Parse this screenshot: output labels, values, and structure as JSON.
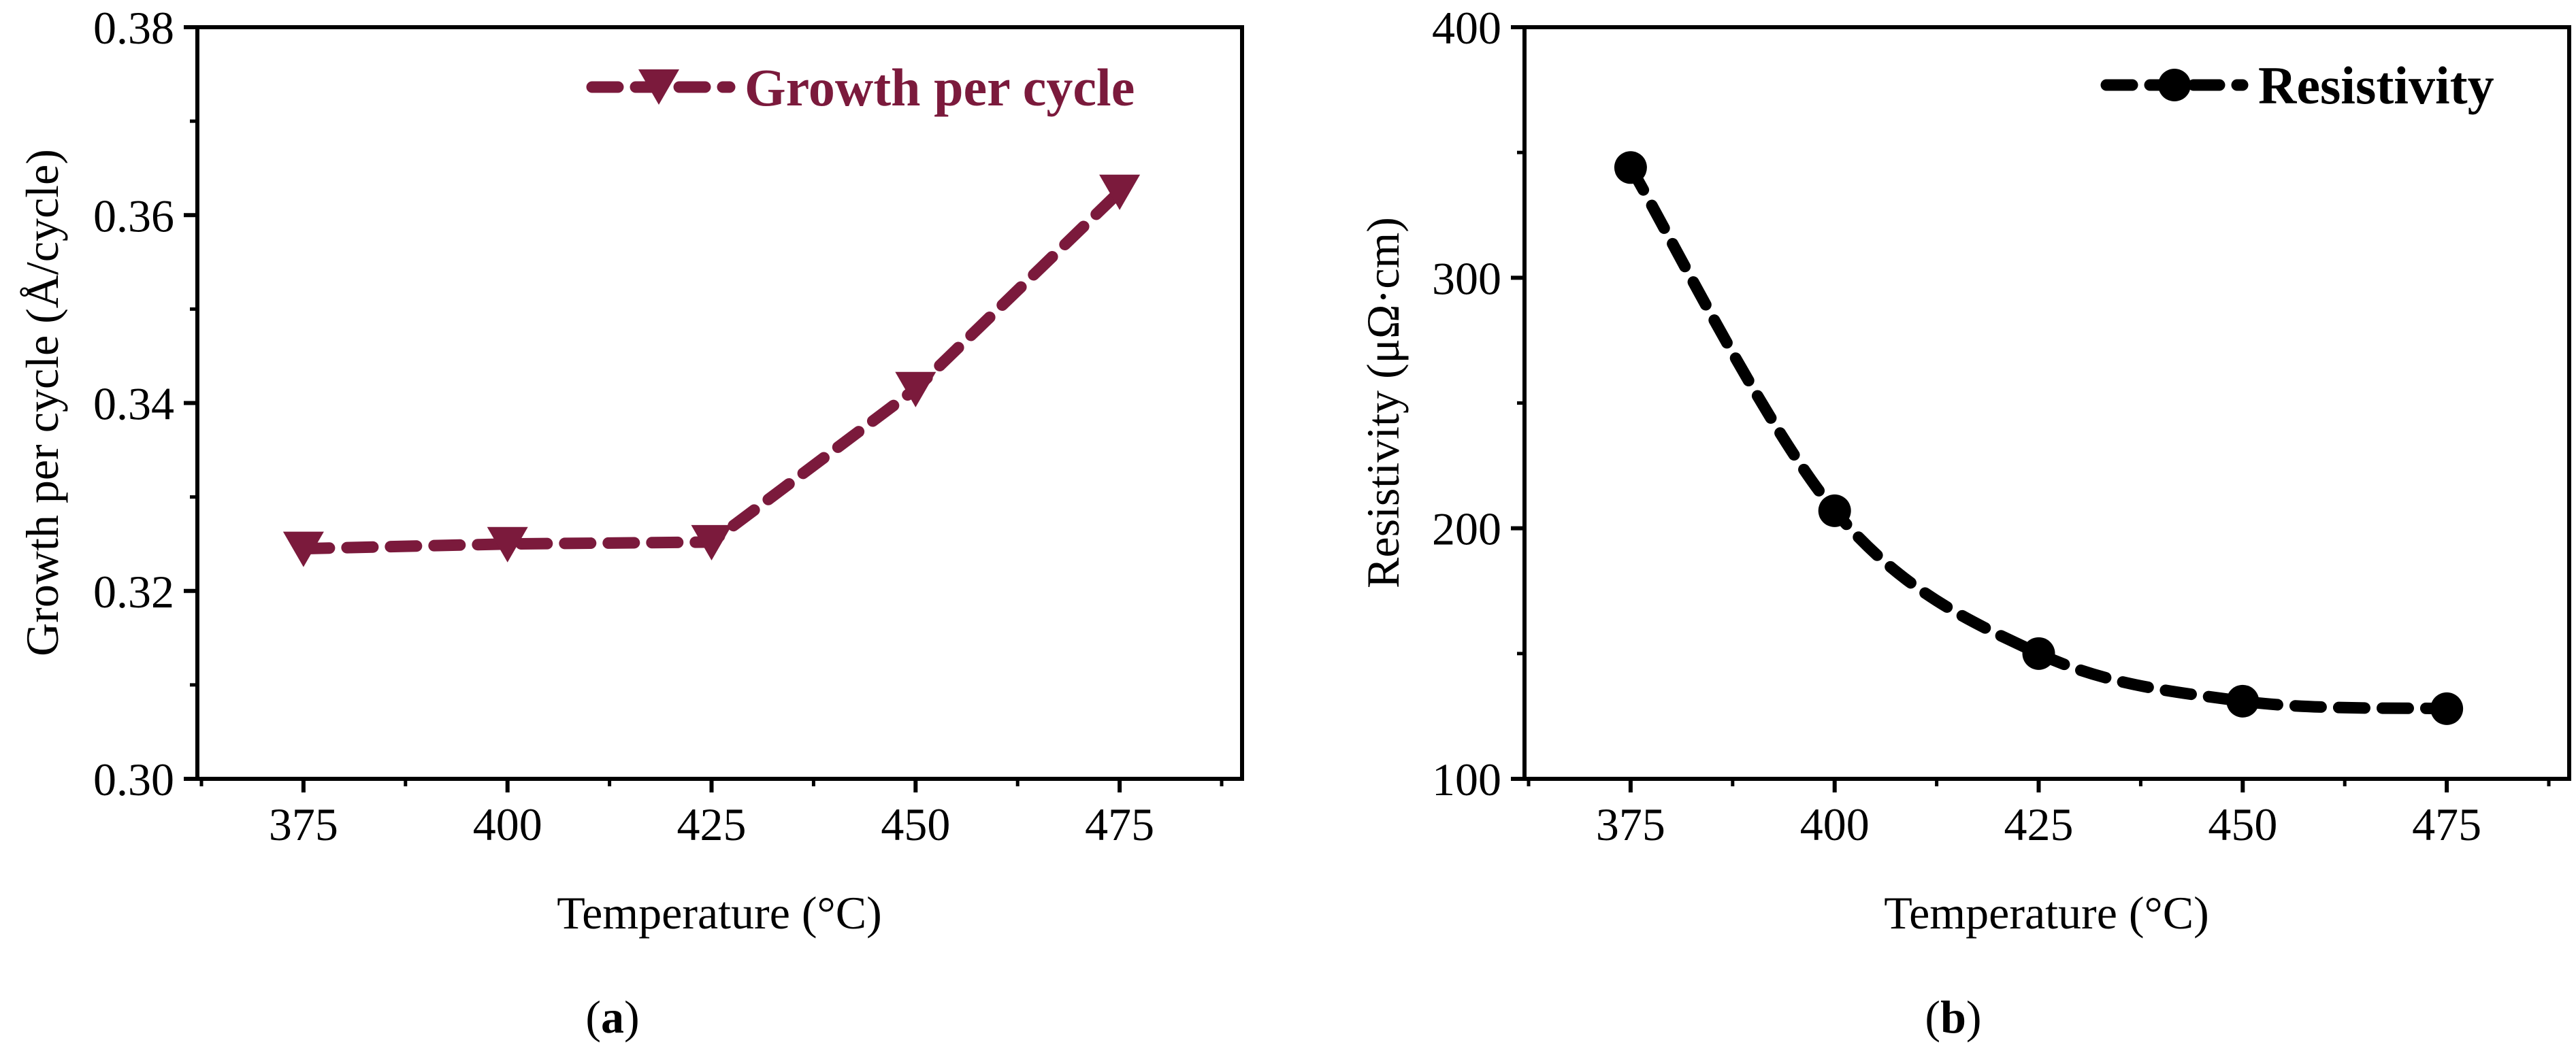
{
  "chart_data": [
    {
      "panel": "a",
      "type": "line",
      "caption_letter": "a",
      "x": [
        375,
        400,
        425,
        450,
        475
      ],
      "series": [
        {
          "name": "Growth per cycle",
          "values": [
            0.3245,
            0.325,
            0.3252,
            0.3415,
            0.3625
          ],
          "marker": "triangle-down",
          "line_style": "dashed",
          "color": "#7b1a3c"
        }
      ],
      "xlabel": "Temperature (°C)",
      "ylabel": "Growth per cycle (Å/cycle)",
      "xlim": [
        362,
        490
      ],
      "ylim": [
        0.3,
        0.38
      ],
      "xticks": [
        "375",
        "400",
        "425",
        "450",
        "475"
      ],
      "yticks": [
        "0.30",
        "0.32",
        "0.34",
        "0.36",
        "0.38"
      ],
      "xtick_values": [
        375,
        400,
        425,
        450,
        475
      ],
      "ytick_values": [
        0.3,
        0.32,
        0.34,
        0.36,
        0.38
      ],
      "legend": {
        "label": "Growth per cycle",
        "placement": "top-right"
      },
      "grid": false
    },
    {
      "panel": "b",
      "type": "line",
      "caption_letter": "b",
      "x": [
        375,
        400,
        425,
        450,
        475
      ],
      "series": [
        {
          "name": "Resistivity",
          "values": [
            344,
            207,
            150,
            131,
            128
          ],
          "marker": "circle",
          "line_style": "dashed",
          "color": "#000000"
        }
      ],
      "xlabel": "Temperature (°C)",
      "ylabel": "Resistivity (μΩ·cm)",
      "xlim": [
        362,
        490
      ],
      "ylim": [
        100,
        400
      ],
      "xticks": [
        "375",
        "400",
        "425",
        "450",
        "475"
      ],
      "yticks": [
        "100",
        "200",
        "300",
        "400"
      ],
      "xtick_values": [
        375,
        400,
        425,
        450,
        475
      ],
      "ytick_values": [
        100,
        200,
        300,
        400
      ],
      "legend": {
        "label": "Resistivity",
        "placement": "top-right"
      },
      "grid": false
    }
  ]
}
